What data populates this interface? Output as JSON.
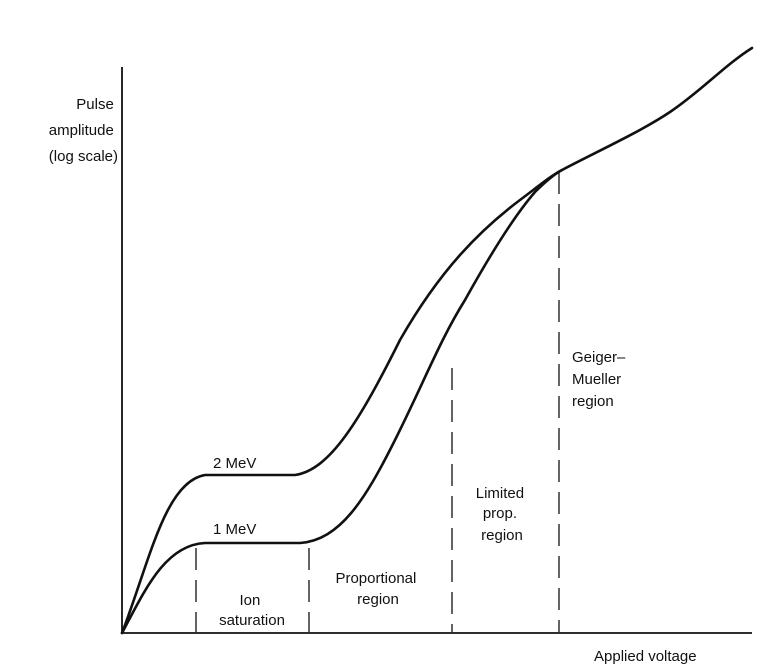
{
  "axes": {
    "ylabel_lines": [
      "Pulse",
      "amplitude",
      "(log scale)"
    ],
    "xlabel": "Applied voltage"
  },
  "curves": [
    {
      "label": "2 MeV"
    },
    {
      "label": "1 MeV"
    }
  ],
  "regions": [
    {
      "lines": [
        "Ion",
        "saturation"
      ]
    },
    {
      "lines": [
        "Proportional",
        "region"
      ]
    },
    {
      "lines": [
        "Limited",
        "prop.",
        "region"
      ]
    },
    {
      "lines": [
        "Geiger–",
        "Mueller",
        "region"
      ]
    }
  ]
}
